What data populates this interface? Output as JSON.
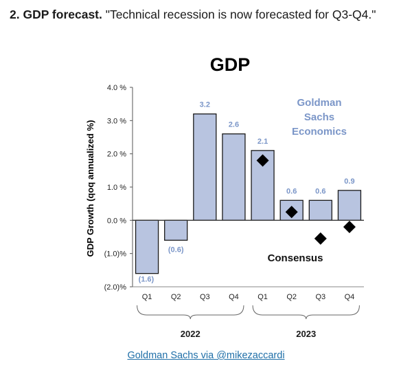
{
  "headline": {
    "lead": "2. GDP forecast.",
    "quote": "\"Technical recession is now forecasted for Q3-Q4.\""
  },
  "credit": {
    "link_text": "Goldman Sachs via @mikezaccardi"
  },
  "chart_data": {
    "type": "bar",
    "title": "GDP",
    "ylabel": "GDP Growth (qoq annualized %)",
    "xlabel": "",
    "ylim": [
      -2.0,
      4.0
    ],
    "yticks": [
      4.0,
      3.0,
      2.0,
      1.0,
      0.0,
      -1.0,
      -2.0
    ],
    "ytick_labels": [
      "4.0 %",
      "3.0 %",
      "2.0 %",
      "1.0 %",
      "0.0 %",
      "(1.0)%",
      "(2.0)%"
    ],
    "categories": [
      "Q1",
      "Q2",
      "Q3",
      "Q4",
      "Q1",
      "Q2",
      "Q3",
      "Q4"
    ],
    "year_groups": [
      {
        "label": "2022",
        "from": 0,
        "to": 3
      },
      {
        "label": "2023",
        "from": 4,
        "to": 7
      }
    ],
    "series": [
      {
        "name": "Goldman Sachs Economics",
        "kind": "bar",
        "values": [
          -1.6,
          -0.6,
          3.2,
          2.6,
          2.1,
          0.6,
          0.6,
          0.9
        ],
        "labels": [
          "(1.6)",
          "(0.6)",
          "3.2",
          "2.6",
          "2.1",
          "0.6",
          "0.6",
          "0.9"
        ]
      },
      {
        "name": "Consensus",
        "kind": "marker",
        "values": [
          null,
          null,
          null,
          null,
          1.8,
          0.25,
          -0.55,
          -0.2
        ]
      }
    ],
    "annotations": {
      "goldman_label": [
        "Goldman",
        "Sachs",
        "Economics"
      ],
      "consensus_label": "Consensus"
    },
    "colors": {
      "bar_fill": "#b8c4e0",
      "bar_stroke": "#1a1a1a",
      "title": "#1f4e79",
      "value_label": "#7b96c8",
      "marker": "#000000"
    }
  }
}
